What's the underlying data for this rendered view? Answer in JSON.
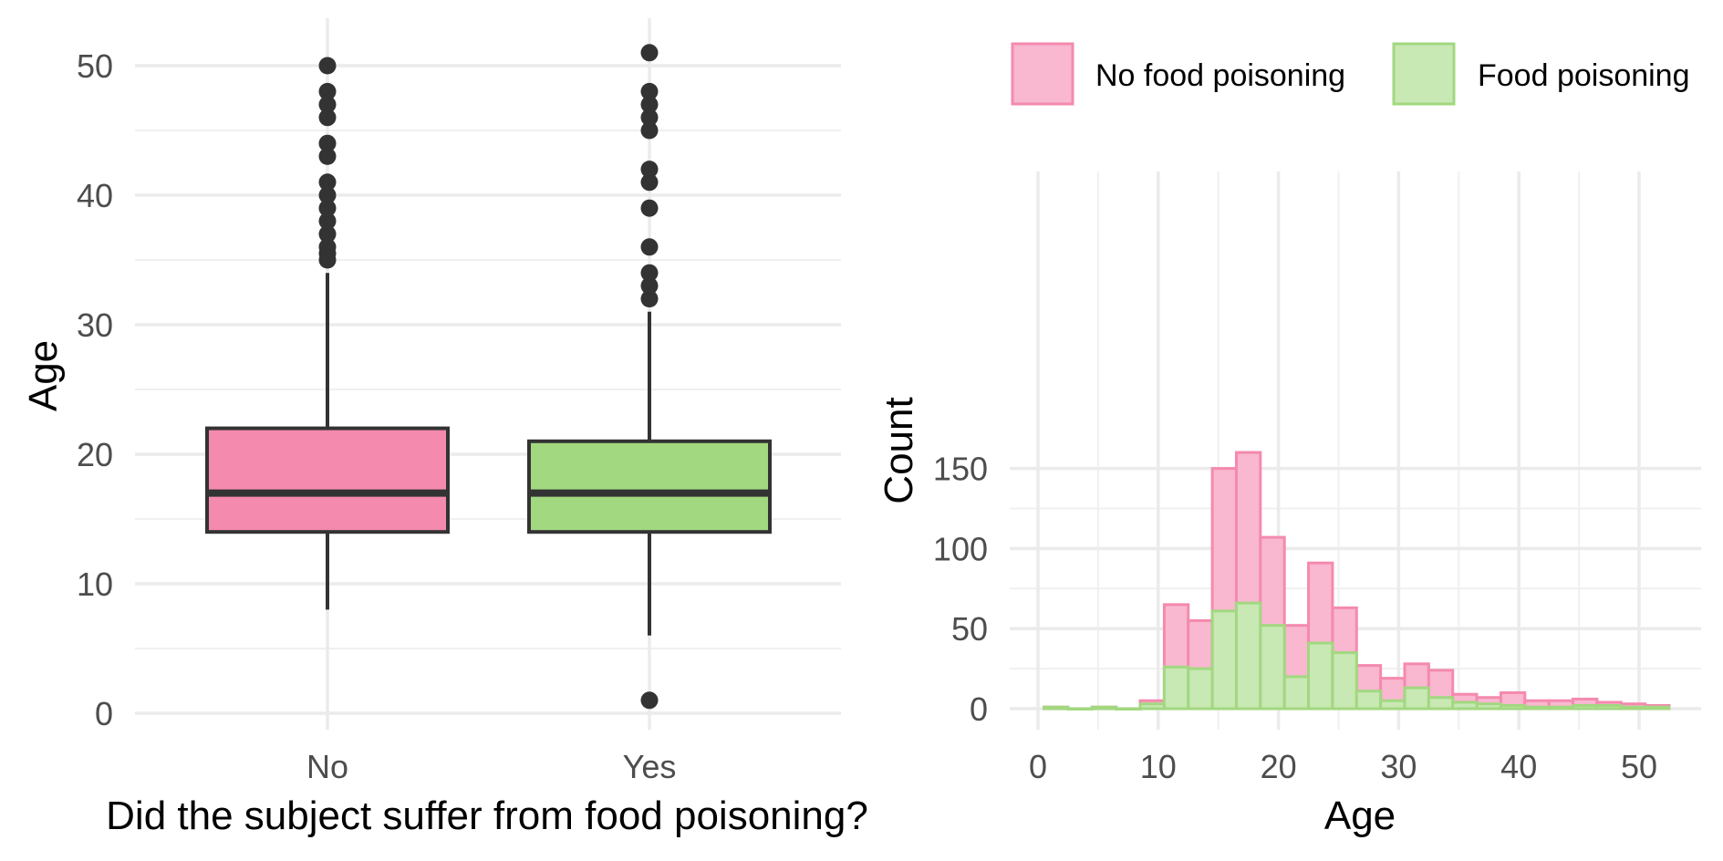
{
  "colors": {
    "no": "#f48aae",
    "yes": "#a2d880",
    "hist_no_fill": "#f9b7d0",
    "hist_no_stroke": "#f48aae",
    "hist_yes_fill": "#c8e8b4",
    "hist_yes_stroke": "#a2d880",
    "box_stroke": "#333333",
    "outlier": "#333333"
  },
  "chart_data": [
    {
      "type": "boxplot",
      "xlabel": "Did the subject suffer from food poisoning?",
      "ylabel": "Age",
      "ylim": [
        0,
        52
      ],
      "yticks": [
        0,
        10,
        20,
        30,
        40,
        50
      ],
      "categories": [
        "No",
        "Yes"
      ],
      "grid": true,
      "boxes": [
        {
          "category": "No",
          "q1": 14,
          "median": 17,
          "q3": 22,
          "whisker_low": 8,
          "whisker_high": 34,
          "outliers": [
            35,
            35.5,
            36,
            37,
            38,
            39,
            40,
            41,
            43,
            44,
            46,
            47,
            48,
            50
          ]
        },
        {
          "category": "Yes",
          "q1": 14,
          "median": 17,
          "q3": 21,
          "whisker_low": 6,
          "whisker_high": 31,
          "outliers": [
            1,
            32,
            33,
            34,
            36,
            39,
            41,
            42,
            45,
            46,
            47,
            48,
            51
          ]
        }
      ]
    },
    {
      "type": "histogram",
      "xlabel": "Age",
      "ylabel": "Count",
      "xlim": [
        0,
        55
      ],
      "ylim": [
        0,
        165
      ],
      "xticks": [
        0,
        10,
        20,
        30,
        40,
        50
      ],
      "yticks": [
        0,
        50,
        100,
        150
      ],
      "bin_width": 2,
      "legend_position": "top",
      "grid": true,
      "bin_starts": [
        0.5,
        2.5,
        4.5,
        6.5,
        8.5,
        10.5,
        12.5,
        14.5,
        16.5,
        18.5,
        20.5,
        22.5,
        24.5,
        26.5,
        28.5,
        30.5,
        32.5,
        34.5,
        36.5,
        38.5,
        40.5,
        42.5,
        44.5,
        46.5,
        48.5,
        50.5
      ],
      "series": [
        {
          "name": "No food poisoning",
          "values": [
            1,
            0,
            1,
            0,
            5,
            65,
            55,
            150,
            160,
            107,
            52,
            91,
            63,
            27,
            19,
            28,
            24,
            9,
            7,
            10,
            5,
            5,
            6,
            4,
            3,
            2
          ]
        },
        {
          "name": "Food poisoning",
          "values": [
            1,
            0,
            1,
            0,
            3,
            26,
            25,
            61,
            66,
            52,
            20,
            41,
            35,
            11,
            5,
            13,
            7,
            4,
            3,
            2,
            1,
            1,
            2,
            2,
            1,
            1
          ]
        }
      ]
    }
  ]
}
